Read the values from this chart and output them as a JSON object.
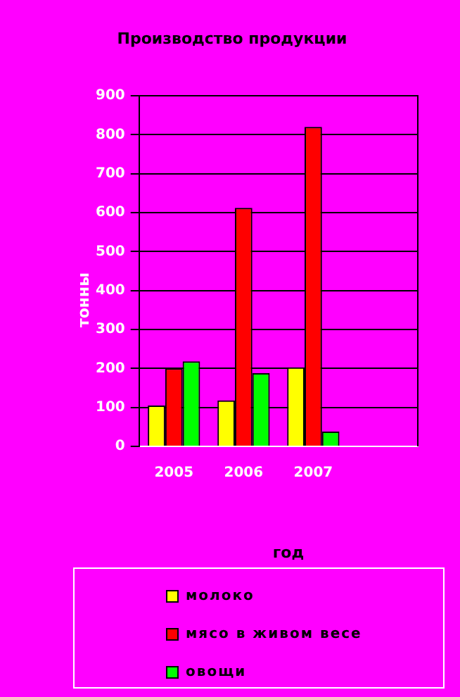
{
  "chart_data": {
    "type": "bar",
    "title": "Производство продукции",
    "xlabel": "год",
    "ylabel": "тонны",
    "categories": [
      "2005",
      "2006",
      "2007",
      null
    ],
    "series": [
      {
        "name": "молоко",
        "color": "#ffff00",
        "values": [
          105,
          118,
          203,
          null
        ]
      },
      {
        "name": "мясо в живом весе",
        "color": "#ff0000",
        "values": [
          200,
          612,
          820,
          null
        ]
      },
      {
        "name": "овощи",
        "color": "#00ff00",
        "values": [
          218,
          188,
          38,
          null
        ]
      }
    ],
    "ylim": [
      0,
      900
    ],
    "yticks": [
      0,
      100,
      200,
      300,
      400,
      500,
      600,
      700,
      800,
      900
    ],
    "grid": "y",
    "legend": "bottom"
  }
}
